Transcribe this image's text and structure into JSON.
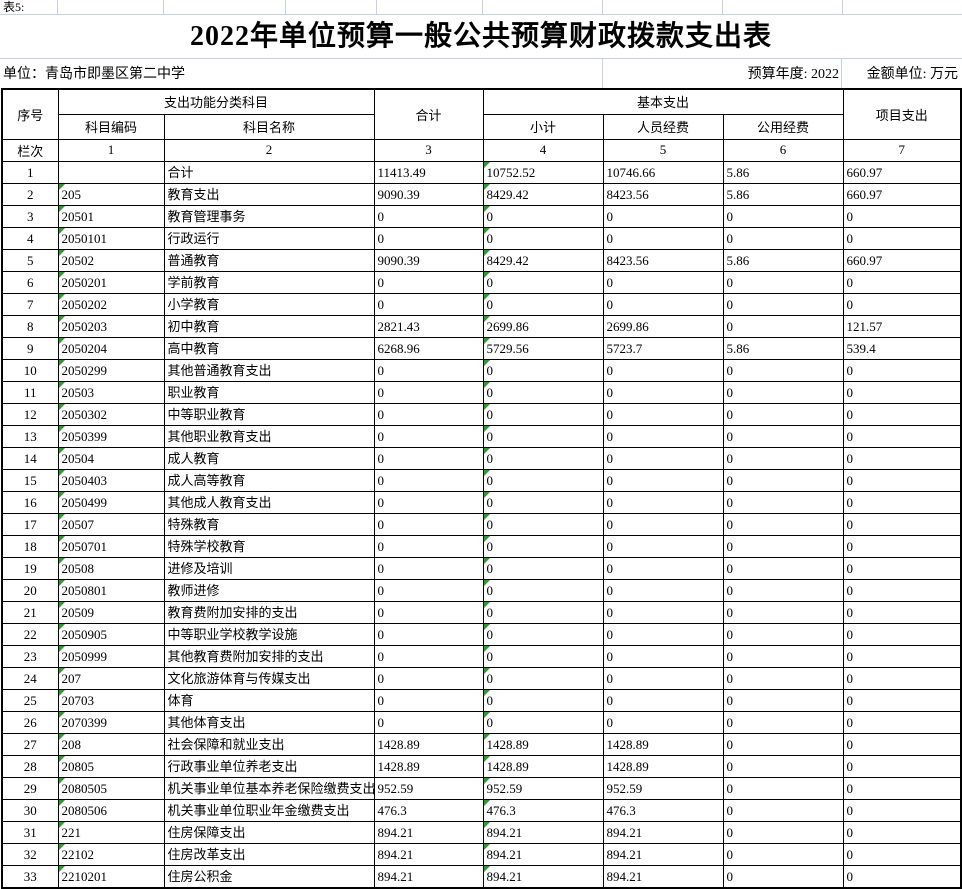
{
  "sheet_label": "表5:",
  "title": "2022年单位预算一般公共预算财政拨款支出表",
  "meta": {
    "unit": "单位：青岛市即墨区第二中学",
    "budget_year": "预算年度: 2022",
    "amount_unit": "金额单位: 万元"
  },
  "colors": {
    "gridline": "#c9d0dd",
    "flag_green": "#2a9e2a",
    "table_border": "#000000"
  },
  "table": {
    "header": {
      "col_no": "序号",
      "func_group": "支出功能分类科目",
      "code": "科目编码",
      "name": "科目名称",
      "total": "合计",
      "basic_group": "基本支出",
      "subtotal": "小计",
      "personnel": "人员经费",
      "public": "公用经费",
      "project": "项目支出",
      "row_label": "栏次",
      "col_indexes": [
        "1",
        "2",
        "3",
        "4",
        "5",
        "6",
        "7"
      ]
    },
    "rows": [
      [
        "1",
        "",
        "合计",
        "11413.49",
        "10752.52",
        "10746.66",
        "5.86",
        "660.97"
      ],
      [
        "2",
        "205",
        "教育支出",
        "9090.39",
        "8429.42",
        "8423.56",
        "5.86",
        "660.97"
      ],
      [
        "3",
        "20501",
        "教育管理事务",
        "0",
        "0",
        "0",
        "0",
        "0"
      ],
      [
        "4",
        "2050101",
        "行政运行",
        "0",
        "0",
        "0",
        "0",
        "0"
      ],
      [
        "5",
        "20502",
        "普通教育",
        "9090.39",
        "8429.42",
        "8423.56",
        "5.86",
        "660.97"
      ],
      [
        "6",
        "2050201",
        "学前教育",
        "0",
        "0",
        "0",
        "0",
        "0"
      ],
      [
        "7",
        "2050202",
        "小学教育",
        "0",
        "0",
        "0",
        "0",
        "0"
      ],
      [
        "8",
        "2050203",
        "初中教育",
        "2821.43",
        "2699.86",
        "2699.86",
        "0",
        "121.57"
      ],
      [
        "9",
        "2050204",
        "高中教育",
        "6268.96",
        "5729.56",
        "5723.7",
        "5.86",
        "539.4"
      ],
      [
        "10",
        "2050299",
        "其他普通教育支出",
        "0",
        "0",
        "0",
        "0",
        "0"
      ],
      [
        "11",
        "20503",
        "职业教育",
        "0",
        "0",
        "0",
        "0",
        "0"
      ],
      [
        "12",
        "2050302",
        "中等职业教育",
        "0",
        "0",
        "0",
        "0",
        "0"
      ],
      [
        "13",
        "2050399",
        "其他职业教育支出",
        "0",
        "0",
        "0",
        "0",
        "0"
      ],
      [
        "14",
        "20504",
        "成人教育",
        "0",
        "0",
        "0",
        "0",
        "0"
      ],
      [
        "15",
        "2050403",
        "成人高等教育",
        "0",
        "0",
        "0",
        "0",
        "0"
      ],
      [
        "16",
        "2050499",
        "其他成人教育支出",
        "0",
        "0",
        "0",
        "0",
        "0"
      ],
      [
        "17",
        "20507",
        "特殊教育",
        "0",
        "0",
        "0",
        "0",
        "0"
      ],
      [
        "18",
        "2050701",
        "特殊学校教育",
        "0",
        "0",
        "0",
        "0",
        "0"
      ],
      [
        "19",
        "20508",
        "进修及培训",
        "0",
        "0",
        "0",
        "0",
        "0"
      ],
      [
        "20",
        "2050801",
        "教师进修",
        "0",
        "0",
        "0",
        "0",
        "0"
      ],
      [
        "21",
        "20509",
        "教育费附加安排的支出",
        "0",
        "0",
        "0",
        "0",
        "0"
      ],
      [
        "22",
        "2050905",
        "中等职业学校教学设施",
        "0",
        "0",
        "0",
        "0",
        "0"
      ],
      [
        "23",
        "2050999",
        "其他教育费附加安排的支出",
        "0",
        "0",
        "0",
        "0",
        "0"
      ],
      [
        "24",
        "207",
        "文化旅游体育与传媒支出",
        "0",
        "0",
        "0",
        "0",
        "0"
      ],
      [
        "25",
        "20703",
        "体育",
        "0",
        "0",
        "0",
        "0",
        "0"
      ],
      [
        "26",
        "2070399",
        "其他体育支出",
        "0",
        "0",
        "0",
        "0",
        "0"
      ],
      [
        "27",
        "208",
        "社会保障和就业支出",
        "1428.89",
        "1428.89",
        "1428.89",
        "0",
        "0"
      ],
      [
        "28",
        "20805",
        "行政事业单位养老支出",
        "1428.89",
        "1428.89",
        "1428.89",
        "0",
        "0"
      ],
      [
        "29",
        "2080505",
        "机关事业单位基本养老保险缴费支出",
        "952.59",
        "952.59",
        "952.59",
        "0",
        "0"
      ],
      [
        "30",
        "2080506",
        "机关事业单位职业年金缴费支出",
        "476.3",
        "476.3",
        "476.3",
        "0",
        "0"
      ],
      [
        "31",
        "221",
        "住房保障支出",
        "894.21",
        "894.21",
        "894.21",
        "0",
        "0"
      ],
      [
        "32",
        "22102",
        "住房改革支出",
        "894.21",
        "894.21",
        "894.21",
        "0",
        "0"
      ],
      [
        "33",
        "2210201",
        "住房公积金",
        "894.21",
        "894.21",
        "894.21",
        "0",
        "0"
      ]
    ]
  }
}
